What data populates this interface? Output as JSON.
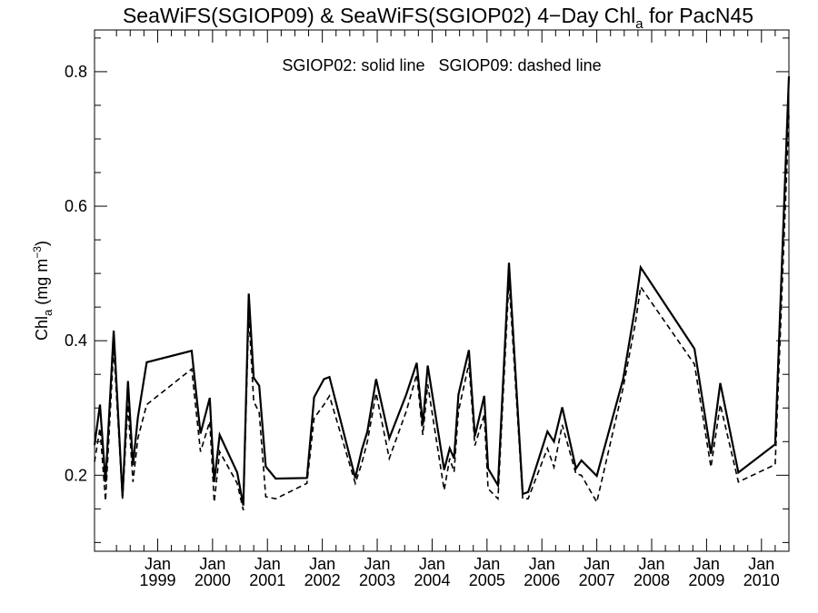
{
  "chart_data": {
    "type": "line",
    "title_main": "SeaWiFS(SGIOP09) & SeaWiFS(SGIOP02) 4−Day Chl",
    "title_sub": "a",
    "title_tail": " for PacN45",
    "ylabel_main": "Chl",
    "ylabel_sub": "a",
    "ylabel_unit": " (mg m",
    "ylabel_sup": "−3",
    "ylabel_close": ")",
    "legend_text": "SGIOP02: solid line   SGIOP09: dashed line",
    "xlim": [
      1997.85,
      2010.5
    ],
    "ylim": [
      0.087,
      0.862
    ],
    "yticks": [
      0.2,
      0.4,
      0.6,
      0.8
    ],
    "ytick_labels": [
      "0.2",
      "0.4",
      "0.6",
      "0.8"
    ],
    "yminor_step": 0.05,
    "xticks": [
      1999.0,
      2000.0,
      2001.0,
      2002.0,
      2003.0,
      2004.0,
      2005.0,
      2006.0,
      2007.0,
      2008.0,
      2009.0,
      2010.0
    ],
    "xtick_month": "Jan",
    "xtick_years": [
      "1999",
      "2000",
      "2001",
      "2002",
      "2003",
      "2004",
      "2005",
      "2006",
      "2007",
      "2008",
      "2009",
      "2010"
    ],
    "xminor_ticks": [
      1998.25,
      1998.5,
      1998.75,
      1999.25,
      1999.5,
      1999.75,
      2000.25,
      2000.5,
      2000.75,
      2001.25,
      2001.5,
      2001.75,
      2002.25,
      2002.5,
      2002.75,
      2003.25,
      2003.5,
      2003.75,
      2004.25,
      2004.5,
      2004.75,
      2005.25,
      2005.5,
      2005.75,
      2006.25,
      2006.5,
      2006.75,
      2007.25,
      2007.5,
      2007.75,
      2008.25,
      2008.5,
      2008.75,
      2009.25,
      2009.5,
      2009.75,
      2010.25
    ],
    "grid": false,
    "legend_position": "top-center",
    "series": [
      {
        "style": "solid",
        "x": [
          1997.85,
          1997.95,
          1998.05,
          1998.2,
          1998.36,
          1998.46,
          1998.55,
          1998.64,
          1998.8,
          1999.62,
          1999.78,
          1999.95,
          2000.03,
          2000.13,
          2000.45,
          2000.56,
          2000.66,
          2000.75,
          2000.85,
          2000.97,
          2001.15,
          2001.72,
          2001.85,
          2002.03,
          2002.13,
          2002.6,
          2002.72,
          2002.82,
          2002.98,
          2003.22,
          2003.53,
          2003.72,
          2003.83,
          2003.92,
          2004.22,
          2004.32,
          2004.4,
          2004.48,
          2004.67,
          2004.78,
          2004.95,
          2005.02,
          2005.2,
          2005.4,
          2005.65,
          2005.75,
          2006.1,
          2006.22,
          2006.37,
          2006.62,
          2006.72,
          2007.0,
          2007.48,
          2007.7,
          2007.8,
          2008.78,
          2009.08,
          2009.25,
          2009.58,
          2010.25,
          2010.5
        ],
        "y": [
          0.245,
          0.305,
          0.19,
          0.415,
          0.168,
          0.34,
          0.215,
          0.286,
          0.368,
          0.385,
          0.262,
          0.315,
          0.19,
          0.26,
          0.204,
          0.155,
          0.47,
          0.345,
          0.333,
          0.213,
          0.195,
          0.196,
          0.316,
          0.343,
          0.346,
          0.196,
          0.238,
          0.265,
          0.343,
          0.255,
          0.32,
          0.367,
          0.275,
          0.363,
          0.208,
          0.24,
          0.225,
          0.32,
          0.386,
          0.258,
          0.318,
          0.21,
          0.185,
          0.516,
          0.172,
          0.175,
          0.265,
          0.25,
          0.301,
          0.21,
          0.222,
          0.199,
          0.343,
          0.45,
          0.509,
          0.388,
          0.232,
          0.337,
          0.204,
          0.246,
          0.793
        ]
      },
      {
        "style": "dashed",
        "x": [
          1997.85,
          1997.95,
          1998.05,
          1998.2,
          1998.36,
          1998.46,
          1998.55,
          1998.64,
          1998.8,
          1999.62,
          1999.78,
          1999.95,
          2000.03,
          2000.13,
          2000.45,
          2000.56,
          2000.66,
          2000.75,
          2000.85,
          2000.97,
          2001.15,
          2001.72,
          2001.85,
          2002.03,
          2002.13,
          2002.6,
          2002.72,
          2002.82,
          2002.98,
          2003.22,
          2003.53,
          2003.72,
          2003.83,
          2003.92,
          2004.22,
          2004.32,
          2004.4,
          2004.48,
          2004.67,
          2004.78,
          2004.95,
          2005.02,
          2005.2,
          2005.4,
          2005.65,
          2005.75,
          2006.1,
          2006.22,
          2006.37,
          2006.62,
          2006.72,
          2007.0,
          2007.48,
          2007.7,
          2007.8,
          2008.78,
          2009.08,
          2009.25,
          2009.58,
          2010.25,
          2010.5
        ],
        "y": [
          0.22,
          0.27,
          0.162,
          0.39,
          0.165,
          0.305,
          0.19,
          0.255,
          0.305,
          0.358,
          0.235,
          0.28,
          0.16,
          0.235,
          0.188,
          0.148,
          0.44,
          0.31,
          0.293,
          0.168,
          0.165,
          0.188,
          0.285,
          0.305,
          0.318,
          0.188,
          0.218,
          0.25,
          0.322,
          0.225,
          0.295,
          0.35,
          0.26,
          0.335,
          0.178,
          0.225,
          0.205,
          0.295,
          0.366,
          0.244,
          0.29,
          0.18,
          0.165,
          0.49,
          0.165,
          0.165,
          0.24,
          0.212,
          0.275,
          0.202,
          0.2,
          0.16,
          0.33,
          0.425,
          0.48,
          0.365,
          0.212,
          0.305,
          0.19,
          0.216,
          0.735
        ]
      }
    ]
  }
}
